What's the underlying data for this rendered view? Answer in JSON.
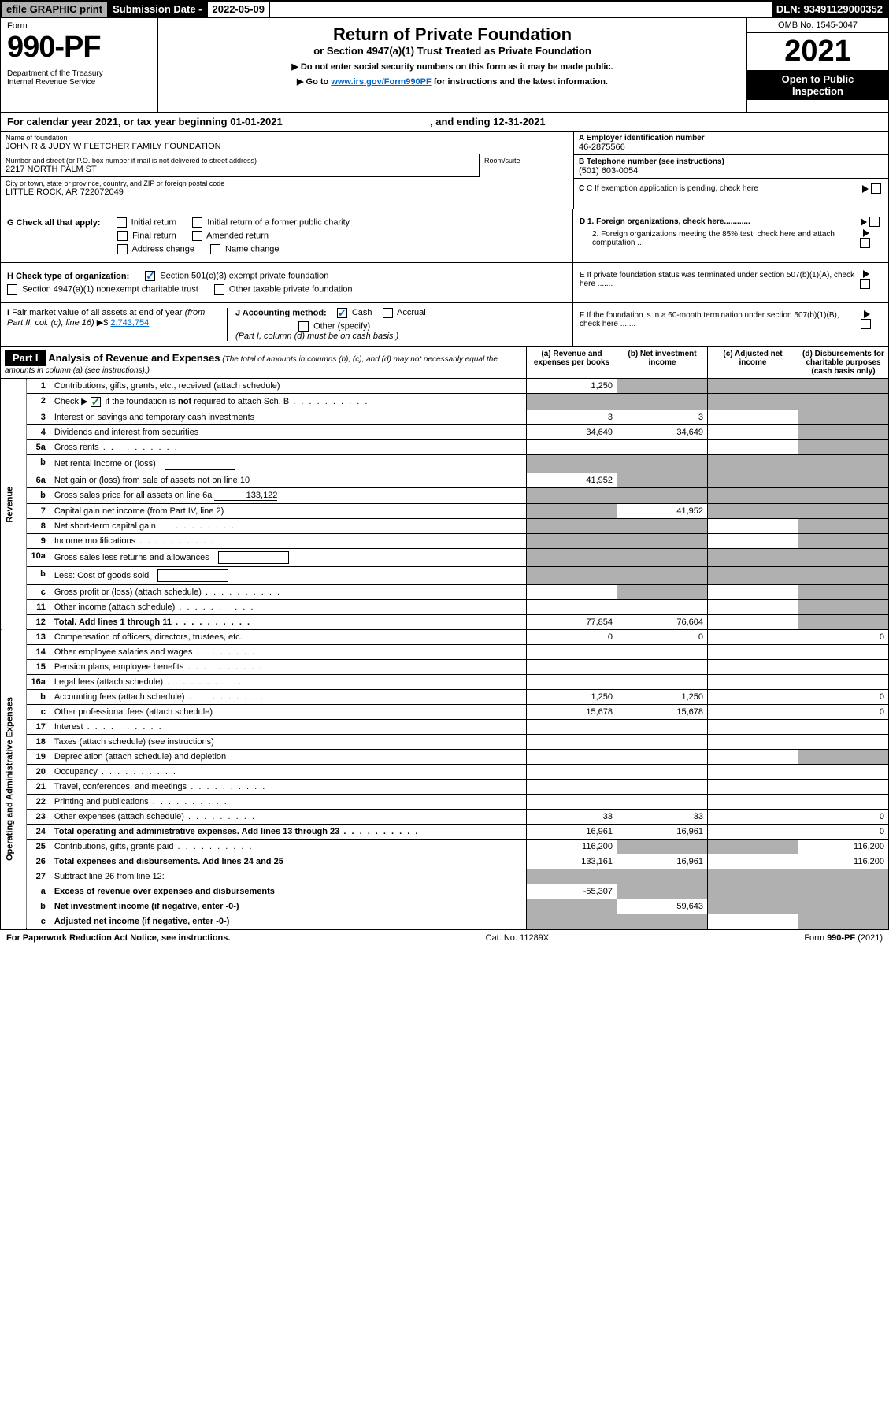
{
  "top": {
    "efile": "efile GRAPHIC print",
    "subdate_label": "Submission Date - ",
    "subdate": "2022-05-09",
    "dln_label": "DLN: ",
    "dln": "93491129000352"
  },
  "header": {
    "form_word": "Form",
    "form_num": "990-PF",
    "dept": "Department of the Treasury\nInternal Revenue Service",
    "title": "Return of Private Foundation",
    "subtitle": "or Section 4947(a)(1) Trust Treated as Private Foundation",
    "instr1": "▶ Do not enter social security numbers on this form as it may be made public.",
    "instr2_pre": "▶ Go to ",
    "instr2_link": "www.irs.gov/Form990PF",
    "instr2_post": " for instructions and the latest information.",
    "omb": "OMB No. 1545-0047",
    "year": "2021",
    "open": "Open to Public\nInspection"
  },
  "cal": {
    "text": "For calendar year 2021, or tax year beginning 01-01-2021",
    "mid": ", and ending ",
    "end": "12-31-2021"
  },
  "info": {
    "name_label": "Name of foundation",
    "name": "JOHN R & JUDY W FLETCHER FAMILY FOUNDATION",
    "addr_label": "Number and street (or P.O. box number if mail is not delivered to street address)",
    "addr": "2217 NORTH PALM ST",
    "room_label": "Room/suite",
    "city_label": "City or town, state or province, country, and ZIP or foreign postal code",
    "city": "LITTLE ROCK, AR  722072049",
    "ein_label": "A Employer identification number",
    "ein": "46-2875566",
    "tel_label": "B Telephone number (see instructions)",
    "tel": "(501) 603-0054",
    "c_label": "C If exemption application is pending, check here",
    "d1": "D 1. Foreign organizations, check here............",
    "d2": "2. Foreign organizations meeting the 85% test, check here and attach computation ...",
    "e": "E  If private foundation status was terminated under section 507(b)(1)(A), check here .......",
    "f": "F  If the foundation is in a 60-month termination under section 507(b)(1)(B), check here .......",
    "g_label": "G Check all that apply:",
    "g_opts": [
      "Initial return",
      "Initial return of a former public charity",
      "Final return",
      "Amended return",
      "Address change",
      "Name change"
    ],
    "h_label": "H Check type of organization:",
    "h_opts": [
      "Section 501(c)(3) exempt private foundation",
      "Section 4947(a)(1) nonexempt charitable trust",
      "Other taxable private foundation"
    ],
    "i_label": "I Fair market value of all assets at end of year (from Part II, col. (c), line 16) ▶$ ",
    "i_val": "2,743,754",
    "j_label": "J Accounting method:",
    "j_opts": [
      "Cash",
      "Accrual",
      "Other (specify)"
    ],
    "j_note": "(Part I, column (d) must be on cash basis.)"
  },
  "part1": {
    "label": "Part I",
    "title": "Analysis of Revenue and Expenses",
    "title_note": "(The total of amounts in columns (b), (c), and (d) may not necessarily equal the amounts in column (a) (see instructions).)",
    "cols": {
      "a": "(a) Revenue and expenses per books",
      "b": "(b) Net investment income",
      "c": "(c) Adjusted net income",
      "d": "(d) Disbursements for charitable purposes (cash basis only)"
    },
    "side_rev": "Revenue",
    "side_exp": "Operating and Administrative Expenses",
    "rows": [
      {
        "n": "1",
        "label": "Contributions, gifts, grants, etc., received (attach schedule)",
        "a": "1,250",
        "b": "",
        "c": "",
        "d": "",
        "shade_b": true,
        "shade_c": true,
        "shade_d": true
      },
      {
        "n": "2",
        "label": "Check ▶ ☑ if the foundation is not required to attach Sch. B",
        "a": "",
        "b": "",
        "c": "",
        "d": "",
        "shade_all": true,
        "is_check": true
      },
      {
        "n": "3",
        "label": "Interest on savings and temporary cash investments",
        "a": "3",
        "b": "3",
        "c": "",
        "d": "",
        "shade_d": true
      },
      {
        "n": "4",
        "label": "Dividends and interest from securities",
        "a": "34,649",
        "b": "34,649",
        "c": "",
        "d": "",
        "shade_d": true
      },
      {
        "n": "5a",
        "label": "Gross rents",
        "a": "",
        "b": "",
        "c": "",
        "d": "",
        "shade_d": true,
        "dots": true
      },
      {
        "n": "b",
        "label": "Net rental income or (loss)",
        "a": "",
        "b": "",
        "c": "",
        "d": "",
        "shade_all": true,
        "box": true
      },
      {
        "n": "6a",
        "label": "Net gain or (loss) from sale of assets not on line 10",
        "a": "41,952",
        "b": "",
        "c": "",
        "d": "",
        "shade_b": true,
        "shade_c": true,
        "shade_d": true
      },
      {
        "n": "b",
        "label": "Gross sales price for all assets on line 6a",
        "a": "",
        "val_inline": "133,122",
        "shade_all": true
      },
      {
        "n": "7",
        "label": "Capital gain net income (from Part IV, line 2)",
        "a": "",
        "b": "41,952",
        "c": "",
        "d": "",
        "shade_a": true,
        "shade_c": true,
        "shade_d": true
      },
      {
        "n": "8",
        "label": "Net short-term capital gain",
        "a": "",
        "b": "",
        "c": "",
        "d": "",
        "shade_a": true,
        "shade_b": true,
        "shade_d": true,
        "dots": true
      },
      {
        "n": "9",
        "label": "Income modifications",
        "a": "",
        "b": "",
        "c": "",
        "d": "",
        "shade_a": true,
        "shade_b": true,
        "shade_d": true,
        "dots": true
      },
      {
        "n": "10a",
        "label": "Gross sales less returns and allowances",
        "a": "",
        "shade_all": true,
        "box": true
      },
      {
        "n": "b",
        "label": "Less: Cost of goods sold",
        "a": "",
        "shade_all": true,
        "box": true
      },
      {
        "n": "c",
        "label": "Gross profit or (loss) (attach schedule)",
        "a": "",
        "b": "",
        "c": "",
        "d": "",
        "shade_b": true,
        "shade_d": true,
        "dots": true
      },
      {
        "n": "11",
        "label": "Other income (attach schedule)",
        "a": "",
        "b": "",
        "c": "",
        "d": "",
        "shade_d": true,
        "dots": true
      },
      {
        "n": "12",
        "label": "Total. Add lines 1 through 11",
        "a": "77,854",
        "b": "76,604",
        "c": "",
        "d": "",
        "bold": true,
        "shade_d": true,
        "dots": true
      },
      {
        "n": "13",
        "label": "Compensation of officers, directors, trustees, etc.",
        "a": "0",
        "b": "0",
        "c": "",
        "d": "0"
      },
      {
        "n": "14",
        "label": "Other employee salaries and wages",
        "a": "",
        "b": "",
        "c": "",
        "d": "",
        "dots": true
      },
      {
        "n": "15",
        "label": "Pension plans, employee benefits",
        "a": "",
        "b": "",
        "c": "",
        "d": "",
        "dots": true
      },
      {
        "n": "16a",
        "label": "Legal fees (attach schedule)",
        "a": "",
        "b": "",
        "c": "",
        "d": "",
        "dots": true
      },
      {
        "n": "b",
        "label": "Accounting fees (attach schedule)",
        "a": "1,250",
        "b": "1,250",
        "c": "",
        "d": "0",
        "dots": true
      },
      {
        "n": "c",
        "label": "Other professional fees (attach schedule)",
        "a": "15,678",
        "b": "15,678",
        "c": "",
        "d": "0"
      },
      {
        "n": "17",
        "label": "Interest",
        "a": "",
        "b": "",
        "c": "",
        "d": "",
        "dots": true
      },
      {
        "n": "18",
        "label": "Taxes (attach schedule) (see instructions)",
        "a": "",
        "b": "",
        "c": "",
        "d": ""
      },
      {
        "n": "19",
        "label": "Depreciation (attach schedule) and depletion",
        "a": "",
        "b": "",
        "c": "",
        "d": "",
        "shade_d": true
      },
      {
        "n": "20",
        "label": "Occupancy",
        "a": "",
        "b": "",
        "c": "",
        "d": "",
        "dots": true
      },
      {
        "n": "21",
        "label": "Travel, conferences, and meetings",
        "a": "",
        "b": "",
        "c": "",
        "d": "",
        "dots": true
      },
      {
        "n": "22",
        "label": "Printing and publications",
        "a": "",
        "b": "",
        "c": "",
        "d": "",
        "dots": true
      },
      {
        "n": "23",
        "label": "Other expenses (attach schedule)",
        "a": "33",
        "b": "33",
        "c": "",
        "d": "0",
        "dots": true
      },
      {
        "n": "24",
        "label": "Total operating and administrative expenses. Add lines 13 through 23",
        "a": "16,961",
        "b": "16,961",
        "c": "",
        "d": "0",
        "bold": true,
        "dots": true
      },
      {
        "n": "25",
        "label": "Contributions, gifts, grants paid",
        "a": "116,200",
        "b": "",
        "c": "",
        "d": "116,200",
        "shade_b": true,
        "shade_c": true,
        "dots": true
      },
      {
        "n": "26",
        "label": "Total expenses and disbursements. Add lines 24 and 25",
        "a": "133,161",
        "b": "16,961",
        "c": "",
        "d": "116,200",
        "bold": true
      },
      {
        "n": "27",
        "label": "Subtract line 26 from line 12:",
        "a": "",
        "b": "",
        "c": "",
        "d": "",
        "shade_all": true
      },
      {
        "n": "a",
        "label": "Excess of revenue over expenses and disbursements",
        "a": "-55,307",
        "b": "",
        "c": "",
        "d": "",
        "bold": true,
        "shade_b": true,
        "shade_c": true,
        "shade_d": true
      },
      {
        "n": "b",
        "label": "Net investment income (if negative, enter -0-)",
        "a": "",
        "b": "59,643",
        "c": "",
        "d": "",
        "bold": true,
        "shade_a": true,
        "shade_c": true,
        "shade_d": true
      },
      {
        "n": "c",
        "label": "Adjusted net income (if negative, enter -0-)",
        "a": "",
        "b": "",
        "c": "",
        "d": "",
        "bold": true,
        "shade_a": true,
        "shade_b": true,
        "shade_d": true
      }
    ]
  },
  "footer": {
    "left": "For Paperwork Reduction Act Notice, see instructions.",
    "mid": "Cat. No. 11289X",
    "right": "Form 990-PF (2021)"
  },
  "colors": {
    "shaded": "#b0b0b0",
    "link": "#0066cc",
    "check_green": "#2e7d32"
  }
}
